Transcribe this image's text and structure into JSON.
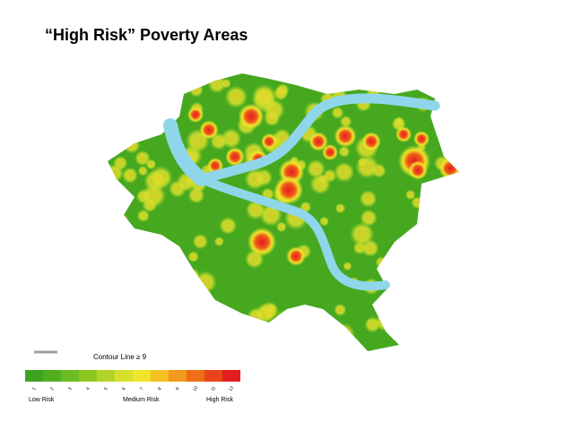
{
  "header": {
    "title": "“High Risk” Poverty Areas"
  },
  "legend": {
    "contour_label": "Contour Line ≥ 9",
    "scale_ticks": [
      "1",
      "2",
      "3",
      "4",
      "5",
      "6",
      "7",
      "8",
      "9",
      "10",
      "11",
      "12"
    ],
    "low_label": "Low Risk",
    "medium_label": "Medium Risk",
    "high_label": "High Risk"
  }
}
